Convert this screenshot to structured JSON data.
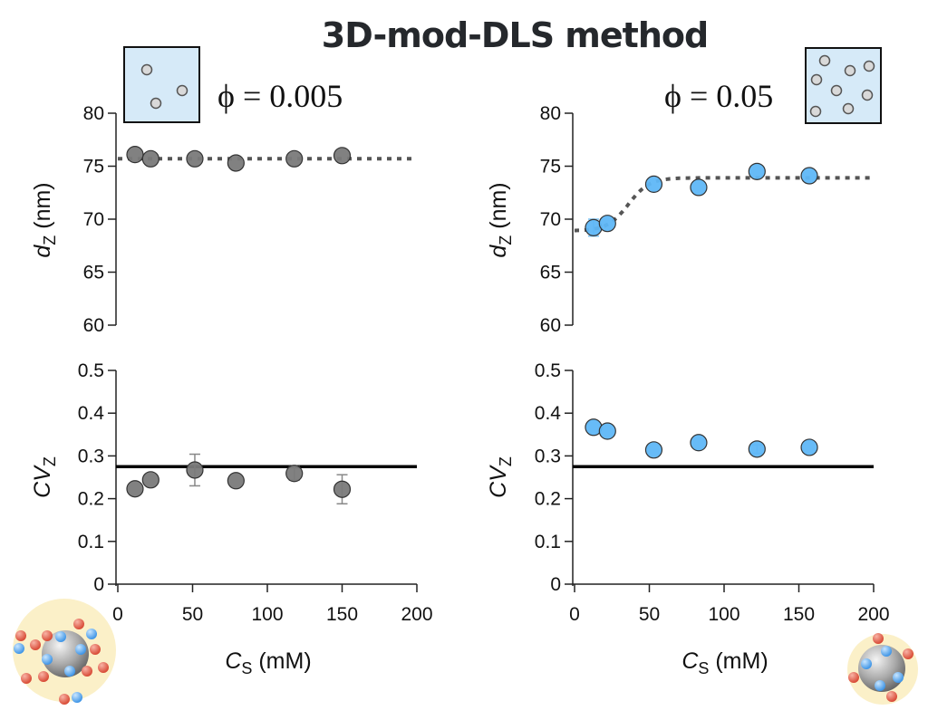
{
  "title": "3D-mod-DLS method",
  "colors": {
    "gray_marker": "#7a7a7a",
    "blue_marker": "#5fb7f7",
    "fit_line": "#555555",
    "ref_line": "#000000",
    "inset_fill": "#d6eaf8",
    "halo": "#fbf0c8",
    "ion_red": "#e5604c",
    "ion_blue": "#58a9ee"
  },
  "panels": {
    "left": {
      "phi_label": "ϕ = 0.005",
      "inset": "sparse-particles-icon",
      "particle_count": 3
    },
    "right": {
      "phi_label": "ϕ = 0.05",
      "inset": "dense-particles-icon",
      "particle_count": 8
    }
  },
  "xlabel_main": "C",
  "xlabel_sub": "S",
  "xlabel_unit": " (mM)",
  "ylabel_top_main": "d",
  "ylabel_top_sub": "Z",
  "ylabel_top_unit": " (nm)",
  "ylabel_bottom_main": "CV",
  "ylabel_bottom_sub": "Z",
  "chart_data": [
    {
      "type": "scatter",
      "name": "dz-phi-0.005",
      "xlabel": "C_S (mM)",
      "ylabel": "d_Z (nm)",
      "xlim": [
        0,
        200
      ],
      "ylim": [
        60,
        80
      ],
      "xticks": [
        0,
        50,
        100,
        150,
        200
      ],
      "yticks": [
        60,
        65,
        70,
        75,
        80
      ],
      "x": [
        11.5,
        22,
        51.5,
        79,
        118,
        150
      ],
      "y": [
        76.1,
        75.7,
        75.7,
        75.3,
        75.7,
        76.0
      ],
      "yerr": [
        0,
        0,
        0,
        0,
        0,
        0
      ],
      "marker_color": "gray",
      "fit": {
        "style": "dotted",
        "kind": "constant",
        "value": 75.7
      }
    },
    {
      "type": "scatter",
      "name": "dz-phi-0.05",
      "xlabel": "C_S (mM)",
      "ylabel": "d_Z (nm)",
      "xlim": [
        0,
        200
      ],
      "ylim": [
        60,
        80
      ],
      "xticks": [
        0,
        50,
        100,
        150,
        200
      ],
      "yticks": [
        60,
        65,
        70,
        75,
        80
      ],
      "x": [
        12.7,
        22,
        53,
        83,
        122,
        157
      ],
      "y": [
        69.2,
        69.6,
        73.3,
        73.0,
        74.5,
        74.1
      ],
      "yerr": [
        0.8,
        0,
        0,
        0,
        0,
        0
      ],
      "marker_color": "blue",
      "fit": {
        "style": "dotted",
        "kind": "sigmoid",
        "low": 68.9,
        "high": 73.9,
        "midpoint": 36,
        "width": 7
      }
    },
    {
      "type": "scatter",
      "name": "cvz-phi-0.005",
      "xlabel": "C_S (mM)",
      "ylabel": "CV_Z",
      "xlim": [
        0,
        200
      ],
      "ylim": [
        0,
        0.5
      ],
      "xticks": [
        0,
        50,
        100,
        150,
        200
      ],
      "yticks": [
        0,
        0.1,
        0.2,
        0.3,
        0.4,
        0.5
      ],
      "x": [
        11.5,
        22,
        51.5,
        79,
        118,
        150
      ],
      "y": [
        0.223,
        0.244,
        0.267,
        0.242,
        0.259,
        0.222
      ],
      "yerr": [
        0,
        0,
        0.037,
        0,
        0.016,
        0.034
      ],
      "marker_color": "gray",
      "reference_line": 0.275
    },
    {
      "type": "scatter",
      "name": "cvz-phi-0.05",
      "xlabel": "C_S (mM)",
      "ylabel": "CV_Z",
      "xlim": [
        0,
        200
      ],
      "ylim": [
        0,
        0.5
      ],
      "xticks": [
        0,
        50,
        100,
        150,
        200
      ],
      "yticks": [
        0,
        0.1,
        0.2,
        0.3,
        0.4,
        0.5
      ],
      "x": [
        12.7,
        22,
        53,
        83,
        122,
        157
      ],
      "y": [
        0.367,
        0.358,
        0.314,
        0.331,
        0.316,
        0.32
      ],
      "yerr": [
        0,
        0,
        0,
        0,
        0.01,
        0
      ],
      "marker_color": "blue",
      "reference_line": 0.275
    }
  ]
}
